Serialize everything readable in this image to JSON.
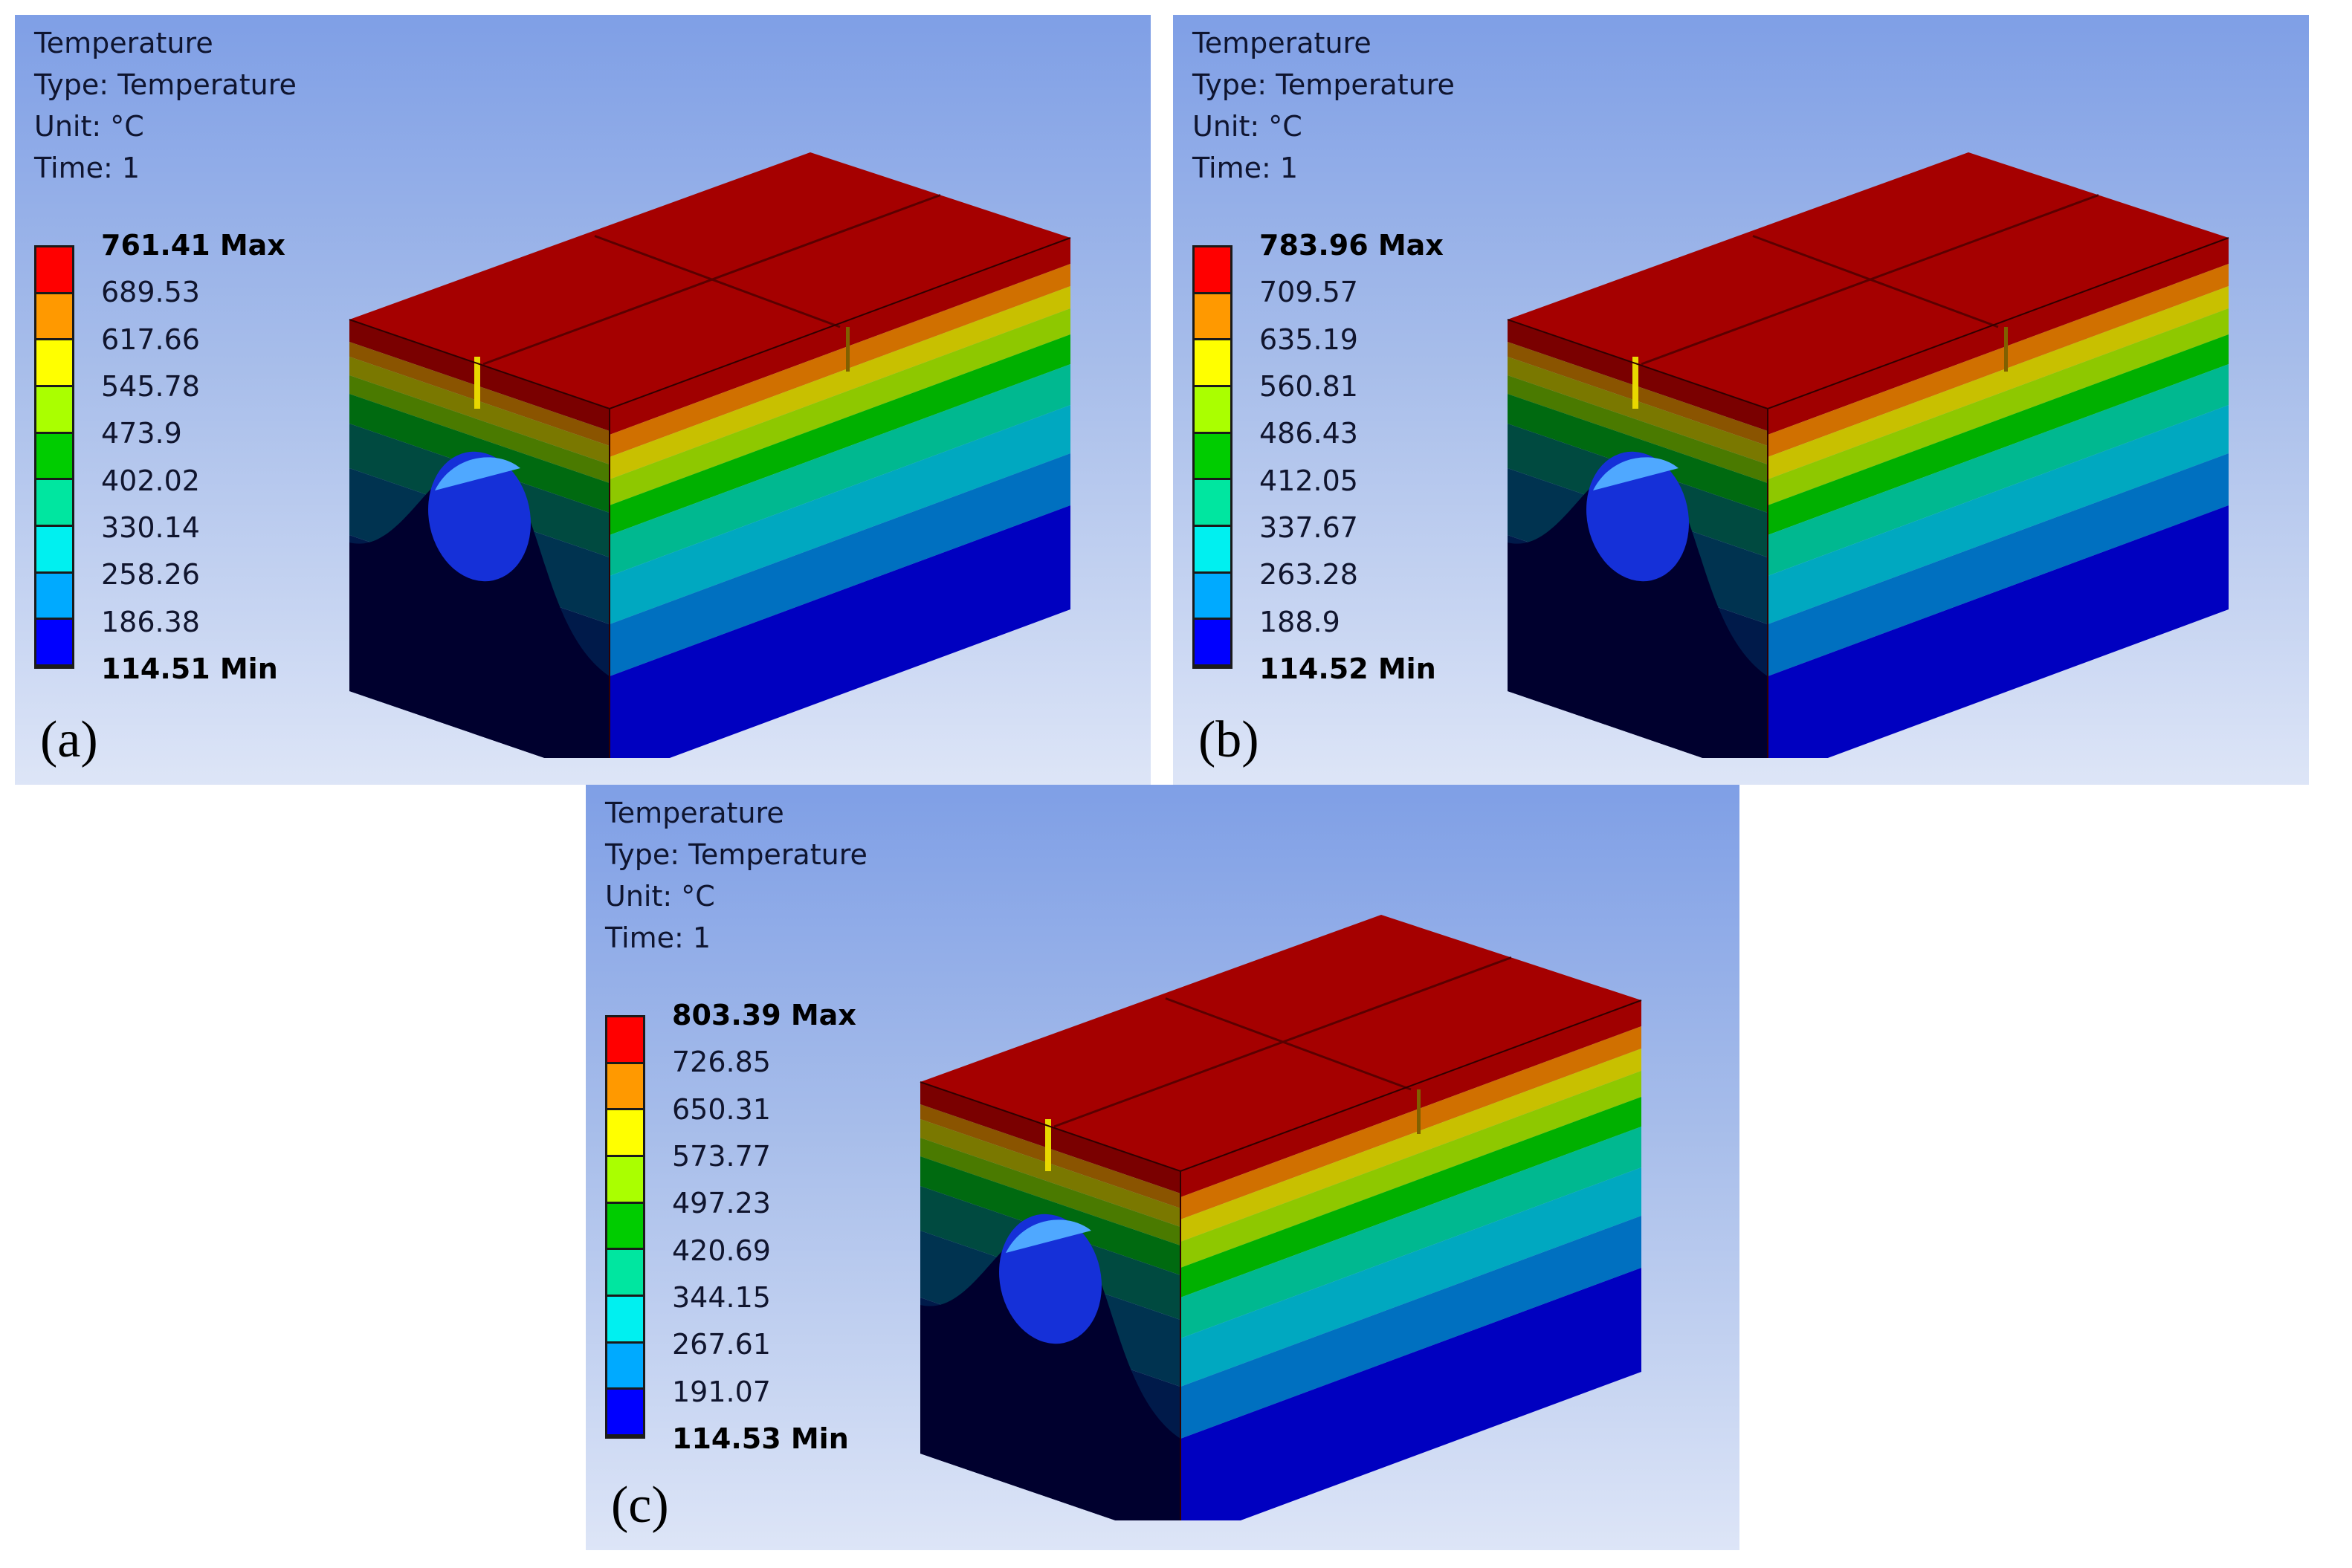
{
  "panels": [
    {
      "id": "a",
      "header": {
        "title": "Temperature",
        "type": "Type: Temperature",
        "unit": "Unit: °C",
        "time": "Time: 1"
      },
      "legend": [
        "761.41 Max",
        "689.53",
        "617.66",
        "545.78",
        "473.9",
        "402.02",
        "330.14",
        "258.26",
        "186.38",
        "114.51 Min"
      ],
      "label": "(a)"
    },
    {
      "id": "b",
      "header": {
        "title": "Temperature",
        "type": "Type: Temperature",
        "unit": "Unit: °C",
        "time": "Time: 1"
      },
      "legend": [
        "783.96 Max",
        "709.57",
        "635.19",
        "560.81",
        "486.43",
        "412.05",
        "337.67",
        "263.28",
        "188.9",
        "114.52 Min"
      ],
      "label": "(b)"
    },
    {
      "id": "c",
      "header": {
        "title": "Temperature",
        "type": "Type: Temperature",
        "unit": "Unit: °C",
        "time": "Time: 1"
      },
      "legend": [
        "803.39 Max",
        "726.85",
        "650.31",
        "573.77",
        "497.23",
        "420.69",
        "344.15",
        "267.61",
        "191.07",
        "114.53 Min"
      ],
      "label": "(c)"
    }
  ],
  "colors": {
    "legend_swatches": [
      "#ff0000",
      "#ff9900",
      "#ffff00",
      "#aaff00",
      "#00cc00",
      "#00e6a0",
      "#00f0f0",
      "#00aaff",
      "#0000ff"
    ],
    "face_top": "#a50000",
    "side_bands": [
      "#a00000",
      "#c86000",
      "#c8c000",
      "#8ec800",
      "#00b400",
      "#00b8a0",
      "#00b0c8",
      "#0080c8",
      "#0000cc"
    ]
  }
}
